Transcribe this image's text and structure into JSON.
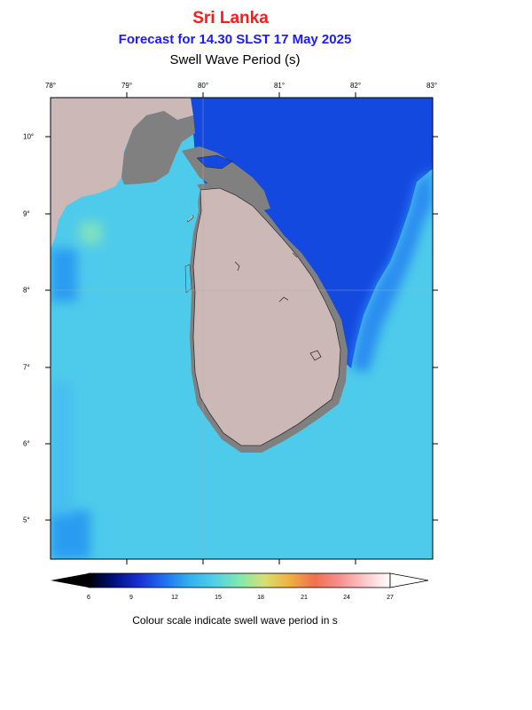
{
  "header": {
    "country": "Sri Lanka",
    "forecast": "Forecast for  14.30 SLST 17 May 2025",
    "parameter": "Swell Wave Period (s)"
  },
  "map": {
    "lon_ticks": [
      "78°",
      "79°",
      "80°",
      "81°",
      "82°",
      "83°"
    ],
    "lat_ticks": [
      "10°",
      "9°",
      "8°",
      "7°",
      "6°",
      "5°"
    ],
    "lon_range": [
      78,
      83
    ],
    "lat_range": [
      4.5,
      10.5
    ],
    "land_color": "#cdb8b8",
    "other_land_color": "#808080",
    "dominant_sea_west_south": "#4ecbeb",
    "dominant_sea_northeast": "#1449e0"
  },
  "colorbar": {
    "ticks": [
      "6",
      "9",
      "12",
      "15",
      "18",
      "21",
      "24",
      "27"
    ],
    "colors": [
      "#000000",
      "#001080",
      "#1830d0",
      "#2070f0",
      "#30b0f0",
      "#50d0e8",
      "#80e8b0",
      "#d8e070",
      "#f0b040",
      "#f07050",
      "#f89090",
      "#fcc8c8",
      "#ffffff"
    ],
    "caption": "Colour scale indicate swell wave period in s"
  }
}
